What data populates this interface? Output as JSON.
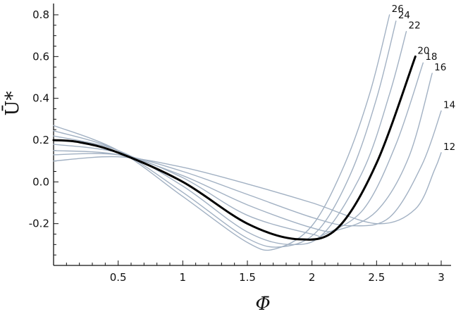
{
  "chart_data": {
    "type": "line",
    "xlabel": "Φ̄",
    "ylabel": "Ū*",
    "xlim": [
      0,
      3.05
    ],
    "ylim": [
      -0.4,
      0.8
    ],
    "xticks": [
      0.5,
      1,
      1.5,
      2,
      2.5,
      3
    ],
    "xtick_labels": [
      "0.5",
      "1",
      "1.5",
      "2",
      "2.5",
      "3"
    ],
    "yticks": [
      -0.2,
      0.0,
      0.2,
      0.4,
      0.6,
      0.8
    ],
    "ytick_labels": [
      "-0.2",
      "0.0",
      "0.2",
      "0.4",
      "0.6",
      "0.8"
    ],
    "grid": false,
    "series_color": "#a2b1c3",
    "highlight_color": "#000000",
    "series": [
      {
        "name": "12",
        "highlight": false,
        "x": [
          0.0,
          0.5,
          1.0,
          1.5,
          2.0,
          2.5,
          2.8,
          2.95,
          3.0
        ],
        "y": [
          0.1,
          0.12,
          0.07,
          -0.01,
          -0.1,
          -0.2,
          -0.13,
          0.06,
          0.14
        ]
      },
      {
        "name": "14",
        "highlight": false,
        "x": [
          0.0,
          0.5,
          1.0,
          1.5,
          2.0,
          2.3,
          2.6,
          2.85,
          3.0
        ],
        "y": [
          0.13,
          0.13,
          0.05,
          -0.06,
          -0.17,
          -0.21,
          -0.17,
          0.08,
          0.34
        ]
      },
      {
        "name": "16",
        "highlight": false,
        "x": [
          0.0,
          0.5,
          1.0,
          1.5,
          2.0,
          2.2,
          2.5,
          2.75,
          2.93
        ],
        "y": [
          0.15,
          0.13,
          0.03,
          -0.11,
          -0.22,
          -0.23,
          -0.14,
          0.12,
          0.52
        ]
      },
      {
        "name": "18",
        "highlight": false,
        "x": [
          0.0,
          0.5,
          1.0,
          1.5,
          2.0,
          2.1,
          2.4,
          2.65,
          2.86
        ],
        "y": [
          0.18,
          0.14,
          0.02,
          -0.16,
          -0.25,
          -0.25,
          -0.13,
          0.18,
          0.57
        ]
      },
      {
        "name": "20",
        "highlight": true,
        "x": [
          0.0,
          0.2,
          0.5,
          1.0,
          1.5,
          1.9,
          2.2,
          2.5,
          2.8
        ],
        "y": [
          0.2,
          0.19,
          0.14,
          0.0,
          -0.2,
          -0.275,
          -0.22,
          0.09,
          0.6
        ]
      },
      {
        "name": "22",
        "highlight": false,
        "x": [
          0.0,
          0.5,
          1.0,
          1.5,
          1.85,
          2.1,
          2.4,
          2.6,
          2.73
        ],
        "y": [
          0.22,
          0.15,
          -0.02,
          -0.24,
          -0.3,
          -0.24,
          0.06,
          0.42,
          0.72
        ]
      },
      {
        "name": "24",
        "highlight": false,
        "x": [
          0.0,
          0.5,
          1.0,
          1.5,
          1.78,
          2.05,
          2.3,
          2.5,
          2.65
        ],
        "y": [
          0.245,
          0.15,
          -0.05,
          -0.27,
          -0.31,
          -0.23,
          0.04,
          0.4,
          0.77
        ]
      },
      {
        "name": "26",
        "highlight": false,
        "x": [
          0.0,
          0.5,
          1.0,
          1.5,
          1.72,
          2.0,
          2.25,
          2.45,
          2.6
        ],
        "y": [
          0.27,
          0.15,
          -0.07,
          -0.29,
          -0.32,
          -0.21,
          0.08,
          0.43,
          0.8
        ]
      }
    ]
  }
}
